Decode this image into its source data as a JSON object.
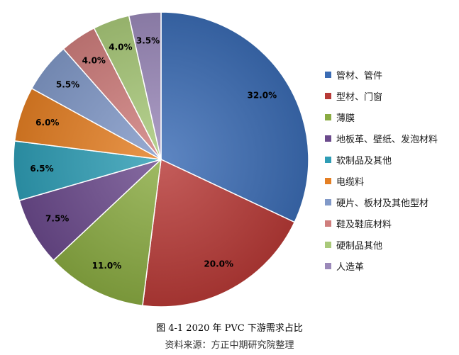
{
  "chart_data": {
    "type": "pie",
    "categories": [
      "管材、管件",
      "型材、门窗",
      "薄膜",
      "地板革、壁纸、发泡材料",
      "软制品及其他",
      "电缆料",
      "硬片、板材及其他型材",
      "鞋及鞋底材料",
      "硬制品其他",
      "人造革"
    ],
    "values": [
      32.0,
      20.0,
      11.0,
      7.5,
      6.5,
      6.0,
      5.5,
      4.0,
      4.0,
      3.5
    ],
    "value_labels": [
      "32.0%",
      "20.0%",
      "11.0%",
      "7.5%",
      "6.5%",
      "6.0%",
      "5.5%",
      "4.0%",
      "4.0%",
      "3.5%"
    ],
    "colors": [
      "#3b6cb4",
      "#b73a37",
      "#8aab42",
      "#6b4a8c",
      "#2f9db5",
      "#e47f24",
      "#8199c8",
      "#cf7e7d",
      "#a9c97a",
      "#9b89b9"
    ],
    "unit": "%",
    "start_angle_deg": 0,
    "direction": "clockwise",
    "legend_position": "right"
  },
  "figure": {
    "caption": "图 4-1  2020 年 PVC 下游需求占比",
    "source": "资料来源：方正中期研究院整理"
  }
}
